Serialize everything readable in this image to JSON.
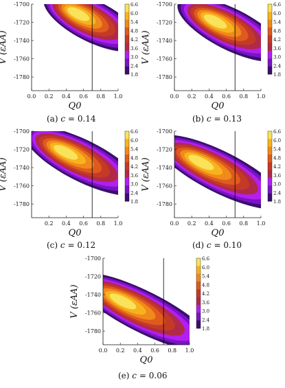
{
  "figure": {
    "captions": [
      {
        "label": "(a)",
        "param": "c",
        "eq": "=",
        "value": "0.14"
      },
      {
        "label": "(b)",
        "param": "c",
        "eq": "=",
        "value": "0.13"
      },
      {
        "label": "(c)",
        "param": "c",
        "eq": "=",
        "value": "0.12"
      },
      {
        "label": "(d)",
        "param": "c",
        "eq": "=",
        "value": "0.10"
      },
      {
        "label": "(e)",
        "param": "c",
        "eq": "=",
        "value": "0.06"
      }
    ]
  },
  "chart_data": [
    {
      "type": "heatmap",
      "subtitle": "(a) c = 0.14",
      "xlabel": "Q0",
      "ylabel": "V (εAA)",
      "xlim": [
        0.0,
        1.0
      ],
      "ylim": [
        -1795,
        -1700
      ],
      "xticks": [
        "0.0",
        "0.2",
        "0.4",
        "0.6",
        "0.8",
        "1.0"
      ],
      "yticks": [
        "-1700",
        "-1720",
        "-1740",
        "-1760",
        "-1780"
      ],
      "colorbar": {
        "ticks": [
          "6.6",
          "6.0",
          "5.4",
          "4.8",
          "4.2",
          "3.6",
          "3.0",
          "2.4",
          "1.8"
        ],
        "range": [
          1.8,
          6.6
        ]
      },
      "vline_x": 0.7,
      "peak": {
        "q0": 0.52,
        "v": -1710,
        "value": 6.6
      },
      "grid": false
    },
    {
      "type": "heatmap",
      "subtitle": "(b) c = 0.13",
      "xlabel": "Q0",
      "ylabel": "V (εAA)",
      "xlim": [
        0.0,
        1.0
      ],
      "ylim": [
        -1795,
        -1700
      ],
      "xticks": [
        "0.0",
        "0.2",
        "0.4",
        "0.6",
        "0.8",
        "1.0"
      ],
      "yticks": [
        "-1700",
        "-1720",
        "-1740",
        "-1760",
        "-1780"
      ],
      "colorbar": {
        "ticks": [
          "6.6",
          "6.0",
          "5.4",
          "4.8",
          "4.2",
          "3.6",
          "3.0",
          "2.4",
          "1.8"
        ],
        "range": [
          1.8,
          6.6
        ]
      },
      "vline_x": 0.7,
      "peak": {
        "q0": 0.45,
        "v": -1718,
        "value": 6.6
      },
      "grid": false
    },
    {
      "type": "heatmap",
      "subtitle": "(c) c = 0.12",
      "xlabel": "Q0",
      "ylabel": "V (εAA)",
      "xlim": [
        0.0,
        1.0
      ],
      "ylim": [
        -1795,
        -1700
      ],
      "xticks": [
        "0.2",
        "0.4",
        "0.6",
        "0.8",
        "1.0"
      ],
      "yticks": [
        "-1700",
        "-1720",
        "-1740",
        "-1760",
        "-1780"
      ],
      "colorbar": {
        "ticks": [
          "6.6",
          "6.0",
          "5.4",
          "4.8",
          "4.2",
          "3.6",
          "3.0",
          "2.4",
          "1.8"
        ],
        "range": [
          1.8,
          6.6
        ]
      },
      "vline_x": 0.7,
      "peak": {
        "q0": 0.37,
        "v": -1722,
        "value": 6.6
      },
      "grid": false
    },
    {
      "type": "heatmap",
      "subtitle": "(d) c = 0.10",
      "xlabel": "Q0",
      "ylabel": "V (εAA)",
      "xlim": [
        0.0,
        1.0
      ],
      "ylim": [
        -1795,
        -1700
      ],
      "xticks": [
        "0.0",
        "0.2",
        "0.4",
        "0.6",
        "0.8",
        "1.0"
      ],
      "yticks": [
        "-1700",
        "-1720",
        "-1740",
        "-1760",
        "-1780"
      ],
      "colorbar": {
        "ticks": [
          "6.6",
          "6.0",
          "5.4",
          "4.8",
          "4.2",
          "3.6",
          "3.0",
          "2.4",
          "1.8"
        ],
        "range": [
          1.8,
          6.6
        ]
      },
      "vline_x": 0.7,
      "peak": {
        "q0": 0.28,
        "v": -1733,
        "value": 6.6
      },
      "grid": false
    },
    {
      "type": "heatmap",
      "subtitle": "(e) c = 0.06",
      "xlabel": "Q0",
      "ylabel": "V (εAA)",
      "xlim": [
        0.0,
        1.0
      ],
      "ylim": [
        -1795,
        -1700
      ],
      "xticks": [
        "0.0",
        "0.2",
        "0.4",
        "0.6",
        "0.8",
        "1.0"
      ],
      "yticks": [
        "-1700",
        "-1720",
        "-1740",
        "-1760",
        "-1780"
      ],
      "colorbar": {
        "ticks": [
          "6.6",
          "6.0",
          "5.4",
          "4.8",
          "4.2",
          "3.6",
          "3.0",
          "2.4",
          "1.8"
        ],
        "range": [
          1.8,
          6.6
        ]
      },
      "vline_x": 0.7,
      "peak": {
        "q0": 0.2,
        "v": -1746,
        "value": 6.6
      },
      "grid": false
    }
  ],
  "colors": {
    "levels": [
      "#3a0f6e",
      "#7a13c6",
      "#b21ff0",
      "#b02a48",
      "#c43a26",
      "#de5a1e",
      "#f08a1a",
      "#f7b31e",
      "#fae25a"
    ],
    "axis": "#111111",
    "vline": "#000000"
  }
}
